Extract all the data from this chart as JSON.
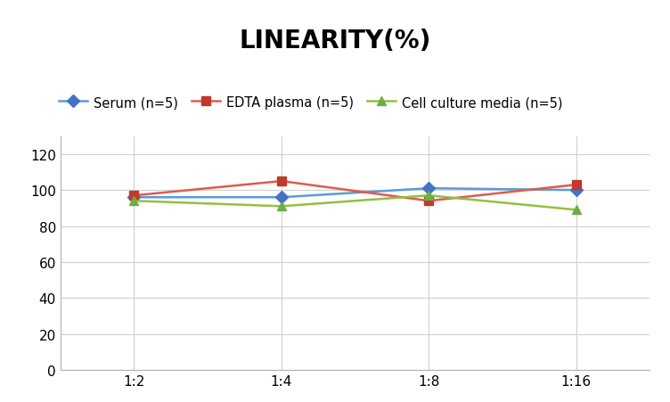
{
  "title": "LINEARITY(%)",
  "x_labels": [
    "1:2",
    "1:4",
    "1:8",
    "1:16"
  ],
  "x_positions": [
    0,
    1,
    2,
    3
  ],
  "series": [
    {
      "label": "Serum (n=5)",
      "line_color": "#5b9bd5",
      "marker": "D",
      "marker_color": "#4472c4",
      "values": [
        96,
        96,
        101,
        100
      ]
    },
    {
      "label": "EDTA plasma (n=5)",
      "line_color": "#e05a4e",
      "marker": "s",
      "marker_color": "#c0392b",
      "values": [
        97,
        105,
        94,
        103
      ]
    },
    {
      "label": "Cell culture media (n=5)",
      "line_color": "#92c040",
      "marker": "^",
      "marker_color": "#70ad47",
      "values": [
        94,
        91,
        97,
        89
      ]
    }
  ],
  "ylim": [
    0,
    130
  ],
  "yticks": [
    0,
    20,
    40,
    60,
    80,
    100,
    120
  ],
  "grid_color": "#d0d0d0",
  "background_color": "#ffffff",
  "title_fontsize": 20,
  "legend_fontsize": 10.5,
  "tick_fontsize": 11
}
